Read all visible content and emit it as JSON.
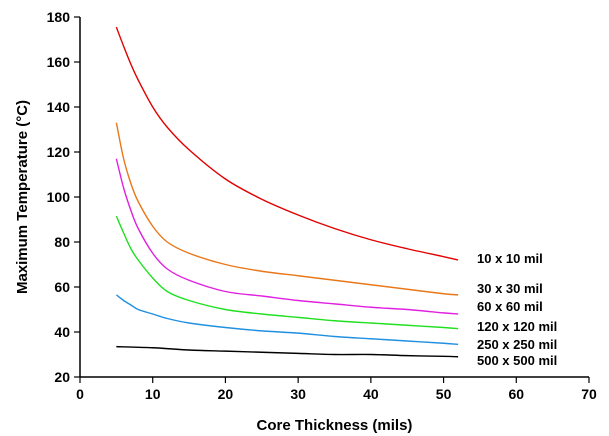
{
  "chart_data": {
    "type": "line",
    "title": "",
    "xlabel": "Core Thickness (mils)",
    "ylabel": "Maximum Temperature (°C)",
    "xlim": [
      0,
      70
    ],
    "ylim": [
      20,
      180
    ],
    "xticks": [
      0,
      10,
      20,
      30,
      40,
      50,
      60,
      70
    ],
    "yticks": [
      20,
      40,
      60,
      80,
      100,
      120,
      140,
      160,
      180
    ],
    "grid": false,
    "legend": "inline labels at right end of each curve",
    "series": [
      {
        "name": "10 x 10 mil",
        "color": "#e00000",
        "x": [
          5,
          6,
          7,
          8,
          10,
          12,
          15,
          20,
          25,
          30,
          35,
          40,
          45,
          50,
          52
        ],
        "y": [
          175.5,
          167,
          159,
          152,
          140,
          131,
          121,
          108,
          99,
          92,
          86,
          81,
          77,
          73.5,
          72
        ]
      },
      {
        "name": "30 x 30 mil",
        "color": "#e8781a",
        "x": [
          5,
          6,
          7,
          8,
          10,
          12,
          15,
          20,
          25,
          30,
          35,
          40,
          45,
          50,
          52
        ],
        "y": [
          133,
          117,
          106,
          98,
          87,
          80,
          75,
          70,
          67,
          65,
          63,
          61,
          59,
          57,
          56.5
        ]
      },
      {
        "name": "60 x 60 mil",
        "color": "#e020e0",
        "x": [
          5,
          6,
          7,
          8,
          10,
          12,
          15,
          20,
          25,
          30,
          35,
          40,
          45,
          50,
          52
        ],
        "y": [
          117,
          104,
          94,
          86,
          75,
          68,
          63,
          58,
          56,
          54,
          52.5,
          51,
          50,
          48.5,
          48
        ]
      },
      {
        "name": "120 x 120 mil",
        "color": "#20e020",
        "x": [
          5,
          6,
          7,
          8,
          10,
          12,
          15,
          20,
          25,
          30,
          35,
          40,
          45,
          50,
          52
        ],
        "y": [
          91.5,
          84,
          77,
          72,
          64,
          58,
          54,
          50,
          48,
          46.5,
          45,
          44,
          43,
          42,
          41.5
        ]
      },
      {
        "name": "250 x 250 mil",
        "color": "#2090e0",
        "x": [
          5,
          6,
          7,
          8,
          10,
          12,
          15,
          20,
          25,
          30,
          35,
          40,
          45,
          50,
          52
        ],
        "y": [
          56.5,
          54,
          52,
          50,
          48,
          46,
          44,
          42,
          40.5,
          39.5,
          38,
          37,
          36,
          35,
          34.5
        ]
      },
      {
        "name": "500 x 500 mil",
        "color": "#000000",
        "x": [
          5,
          10,
          15,
          20,
          25,
          30,
          35,
          40,
          45,
          50,
          52
        ],
        "y": [
          33.5,
          33,
          32,
          31.5,
          31,
          30.5,
          30,
          30,
          29.5,
          29.2,
          29
        ]
      }
    ]
  }
}
